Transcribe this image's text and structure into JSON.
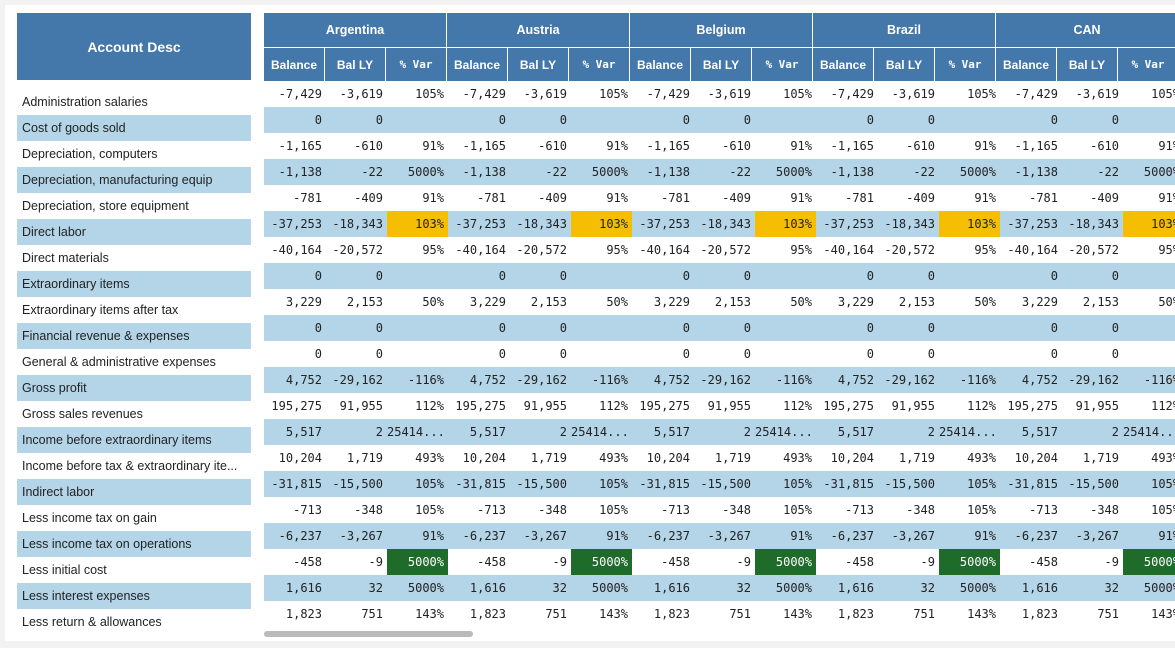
{
  "table": {
    "account_header": "Account Desc",
    "countries": [
      "Argentina",
      "Austria",
      "Belgium",
      "Brazil",
      "CAN"
    ],
    "subheaders": [
      "Balance",
      "Bal LY",
      "% Var"
    ],
    "rows": [
      {
        "label": "Administration salaries",
        "balance": "-7,429",
        "bal_ly": "-3,619",
        "var": "105%",
        "highlight": ""
      },
      {
        "label": "Cost of goods sold",
        "balance": "0",
        "bal_ly": "0",
        "var": "",
        "highlight": ""
      },
      {
        "label": "Depreciation, computers",
        "balance": "-1,165",
        "bal_ly": "-610",
        "var": "91%",
        "highlight": ""
      },
      {
        "label": "Depreciation, manufacturing equip",
        "balance": "-1,138",
        "bal_ly": "-22",
        "var": "5000%",
        "highlight": ""
      },
      {
        "label": "Depreciation, store equipment",
        "balance": "-781",
        "bal_ly": "-409",
        "var": "91%",
        "highlight": ""
      },
      {
        "label": "Direct labor",
        "balance": "-37,253",
        "bal_ly": "-18,343",
        "var": "103%",
        "highlight": "yellow"
      },
      {
        "label": "Direct materials",
        "balance": "-40,164",
        "bal_ly": "-20,572",
        "var": "95%",
        "highlight": ""
      },
      {
        "label": "Extraordinary items",
        "balance": "0",
        "bal_ly": "0",
        "var": "",
        "highlight": ""
      },
      {
        "label": "Extraordinary items after tax",
        "balance": "3,229",
        "bal_ly": "2,153",
        "var": "50%",
        "highlight": ""
      },
      {
        "label": "Financial revenue & expenses",
        "balance": "0",
        "bal_ly": "0",
        "var": "",
        "highlight": ""
      },
      {
        "label": "General & administrative expenses",
        "balance": "0",
        "bal_ly": "0",
        "var": "",
        "highlight": ""
      },
      {
        "label": "Gross profit",
        "balance": "4,752",
        "bal_ly": "-29,162",
        "var": "-116%",
        "highlight": ""
      },
      {
        "label": "Gross sales revenues",
        "balance": "195,275",
        "bal_ly": "91,955",
        "var": "112%",
        "highlight": ""
      },
      {
        "label": "Income before extraordinary items",
        "balance": "5,517",
        "bal_ly": "2",
        "var": "25414...",
        "highlight": ""
      },
      {
        "label": "Income before tax & extraordinary ite...",
        "balance": "10,204",
        "bal_ly": "1,719",
        "var": "493%",
        "highlight": ""
      },
      {
        "label": "Indirect labor",
        "balance": "-31,815",
        "bal_ly": "-15,500",
        "var": "105%",
        "highlight": ""
      },
      {
        "label": "Less income tax on gain",
        "balance": "-713",
        "bal_ly": "-348",
        "var": "105%",
        "highlight": ""
      },
      {
        "label": "Less income tax on operations",
        "balance": "-6,237",
        "bal_ly": "-3,267",
        "var": "91%",
        "highlight": ""
      },
      {
        "label": "Less initial cost",
        "balance": "-458",
        "bal_ly": "-9",
        "var": "5000%",
        "highlight": "green"
      },
      {
        "label": "Less interest expenses",
        "balance": "1,616",
        "bal_ly": "32",
        "var": "5000%",
        "highlight": ""
      },
      {
        "label": "Less return & allowances",
        "balance": "1,823",
        "bal_ly": "751",
        "var": "143%",
        "highlight": ""
      }
    ]
  }
}
